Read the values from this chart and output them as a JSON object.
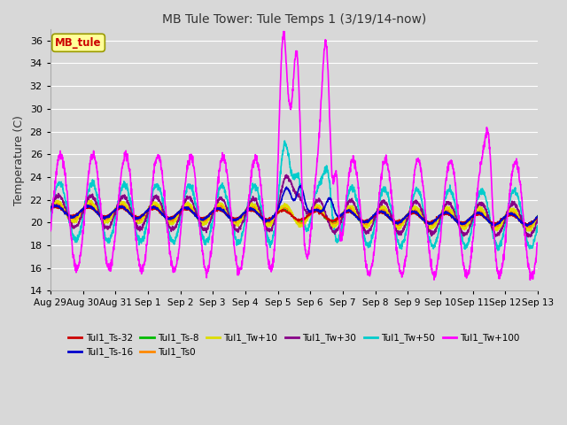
{
  "title": "MB Tule Tower: Tule Temps 1 (3/19/14-now)",
  "ylabel": "Temperature (C)",
  "ylim": [
    14,
    37
  ],
  "yticks": [
    14,
    16,
    18,
    20,
    22,
    24,
    26,
    28,
    30,
    32,
    34,
    36
  ],
  "x_start": 0,
  "x_end": 15,
  "legend_box_label": "MB_tule",
  "background_color": "#d8d8d8",
  "plot_bg_color": "#d8d8d8",
  "grid_color": "#ffffff",
  "series": [
    {
      "label": "Tul1_Ts-32",
      "color": "#cc0000",
      "lw": 1.2,
      "zorder": 5
    },
    {
      "label": "Tul1_Ts-16",
      "color": "#0000cc",
      "lw": 1.2,
      "zorder": 5
    },
    {
      "label": "Tul1_Ts-8",
      "color": "#00bb00",
      "lw": 1.2,
      "zorder": 4
    },
    {
      "label": "Tul1_Ts0",
      "color": "#ff8800",
      "lw": 1.2,
      "zorder": 4
    },
    {
      "label": "Tul1_Tw+10",
      "color": "#dddd00",
      "lw": 1.2,
      "zorder": 4
    },
    {
      "label": "Tul1_Tw+30",
      "color": "#880088",
      "lw": 1.2,
      "zorder": 4
    },
    {
      "label": "Tul1_Tw+50",
      "color": "#00cccc",
      "lw": 1.2,
      "zorder": 3
    },
    {
      "label": "Tul1_Tw+100",
      "color": "#ff00ff",
      "lw": 1.2,
      "zorder": 6
    }
  ],
  "xtick_labels": [
    "Aug 29",
    "Aug 30",
    "Aug 31",
    "Sep 1",
    "Sep 2",
    "Sep 3",
    "Sep 4",
    "Sep 5",
    "Sep 6",
    "Sep 7",
    "Sep 8",
    "Sep 9",
    "Sep 10",
    "Sep 11",
    "Sep 12",
    "Sep 13"
  ],
  "xtick_positions": [
    0,
    1,
    2,
    3,
    4,
    5,
    6,
    7,
    8,
    9,
    10,
    11,
    12,
    13,
    14,
    15
  ]
}
